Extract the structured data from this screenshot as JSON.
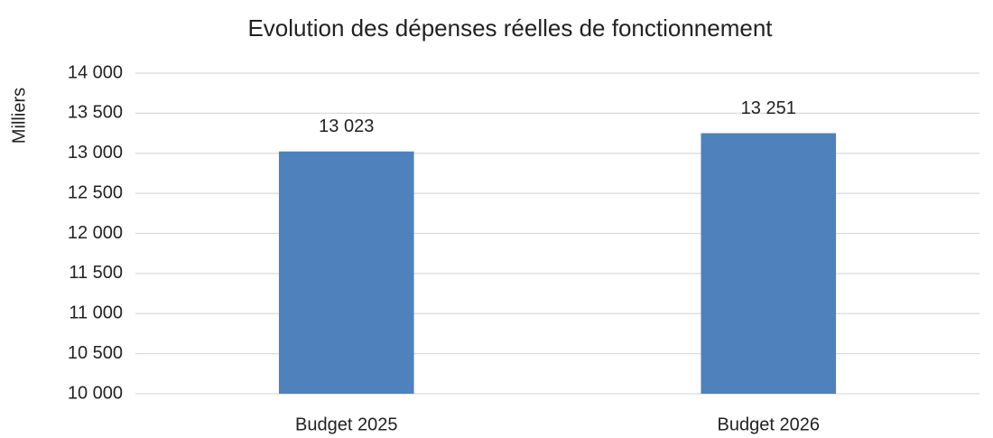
{
  "chart_data": {
    "type": "bar",
    "title": "Evolution des dépenses réelles de fonctionnement",
    "y_label": "Milliers",
    "categories": [
      "Budget 2025",
      "Budget 2026"
    ],
    "values": [
      13023,
      13251
    ],
    "value_labels": [
      "13 023",
      "13 251"
    ],
    "color": "#4f81bd",
    "ylim": [
      10000,
      14000
    ],
    "yticks": [
      {
        "value": 10000,
        "label": "10 000"
      },
      {
        "value": 10500,
        "label": "10 500"
      },
      {
        "value": 11000,
        "label": "11 000"
      },
      {
        "value": 11500,
        "label": "11 500"
      },
      {
        "value": 12000,
        "label": "12 000"
      },
      {
        "value": 12500,
        "label": "12 500"
      },
      {
        "value": 13000,
        "label": "13 000"
      },
      {
        "value": 13500,
        "label": "13 500"
      },
      {
        "value": 14000,
        "label": "14 000"
      }
    ],
    "grid": true
  }
}
